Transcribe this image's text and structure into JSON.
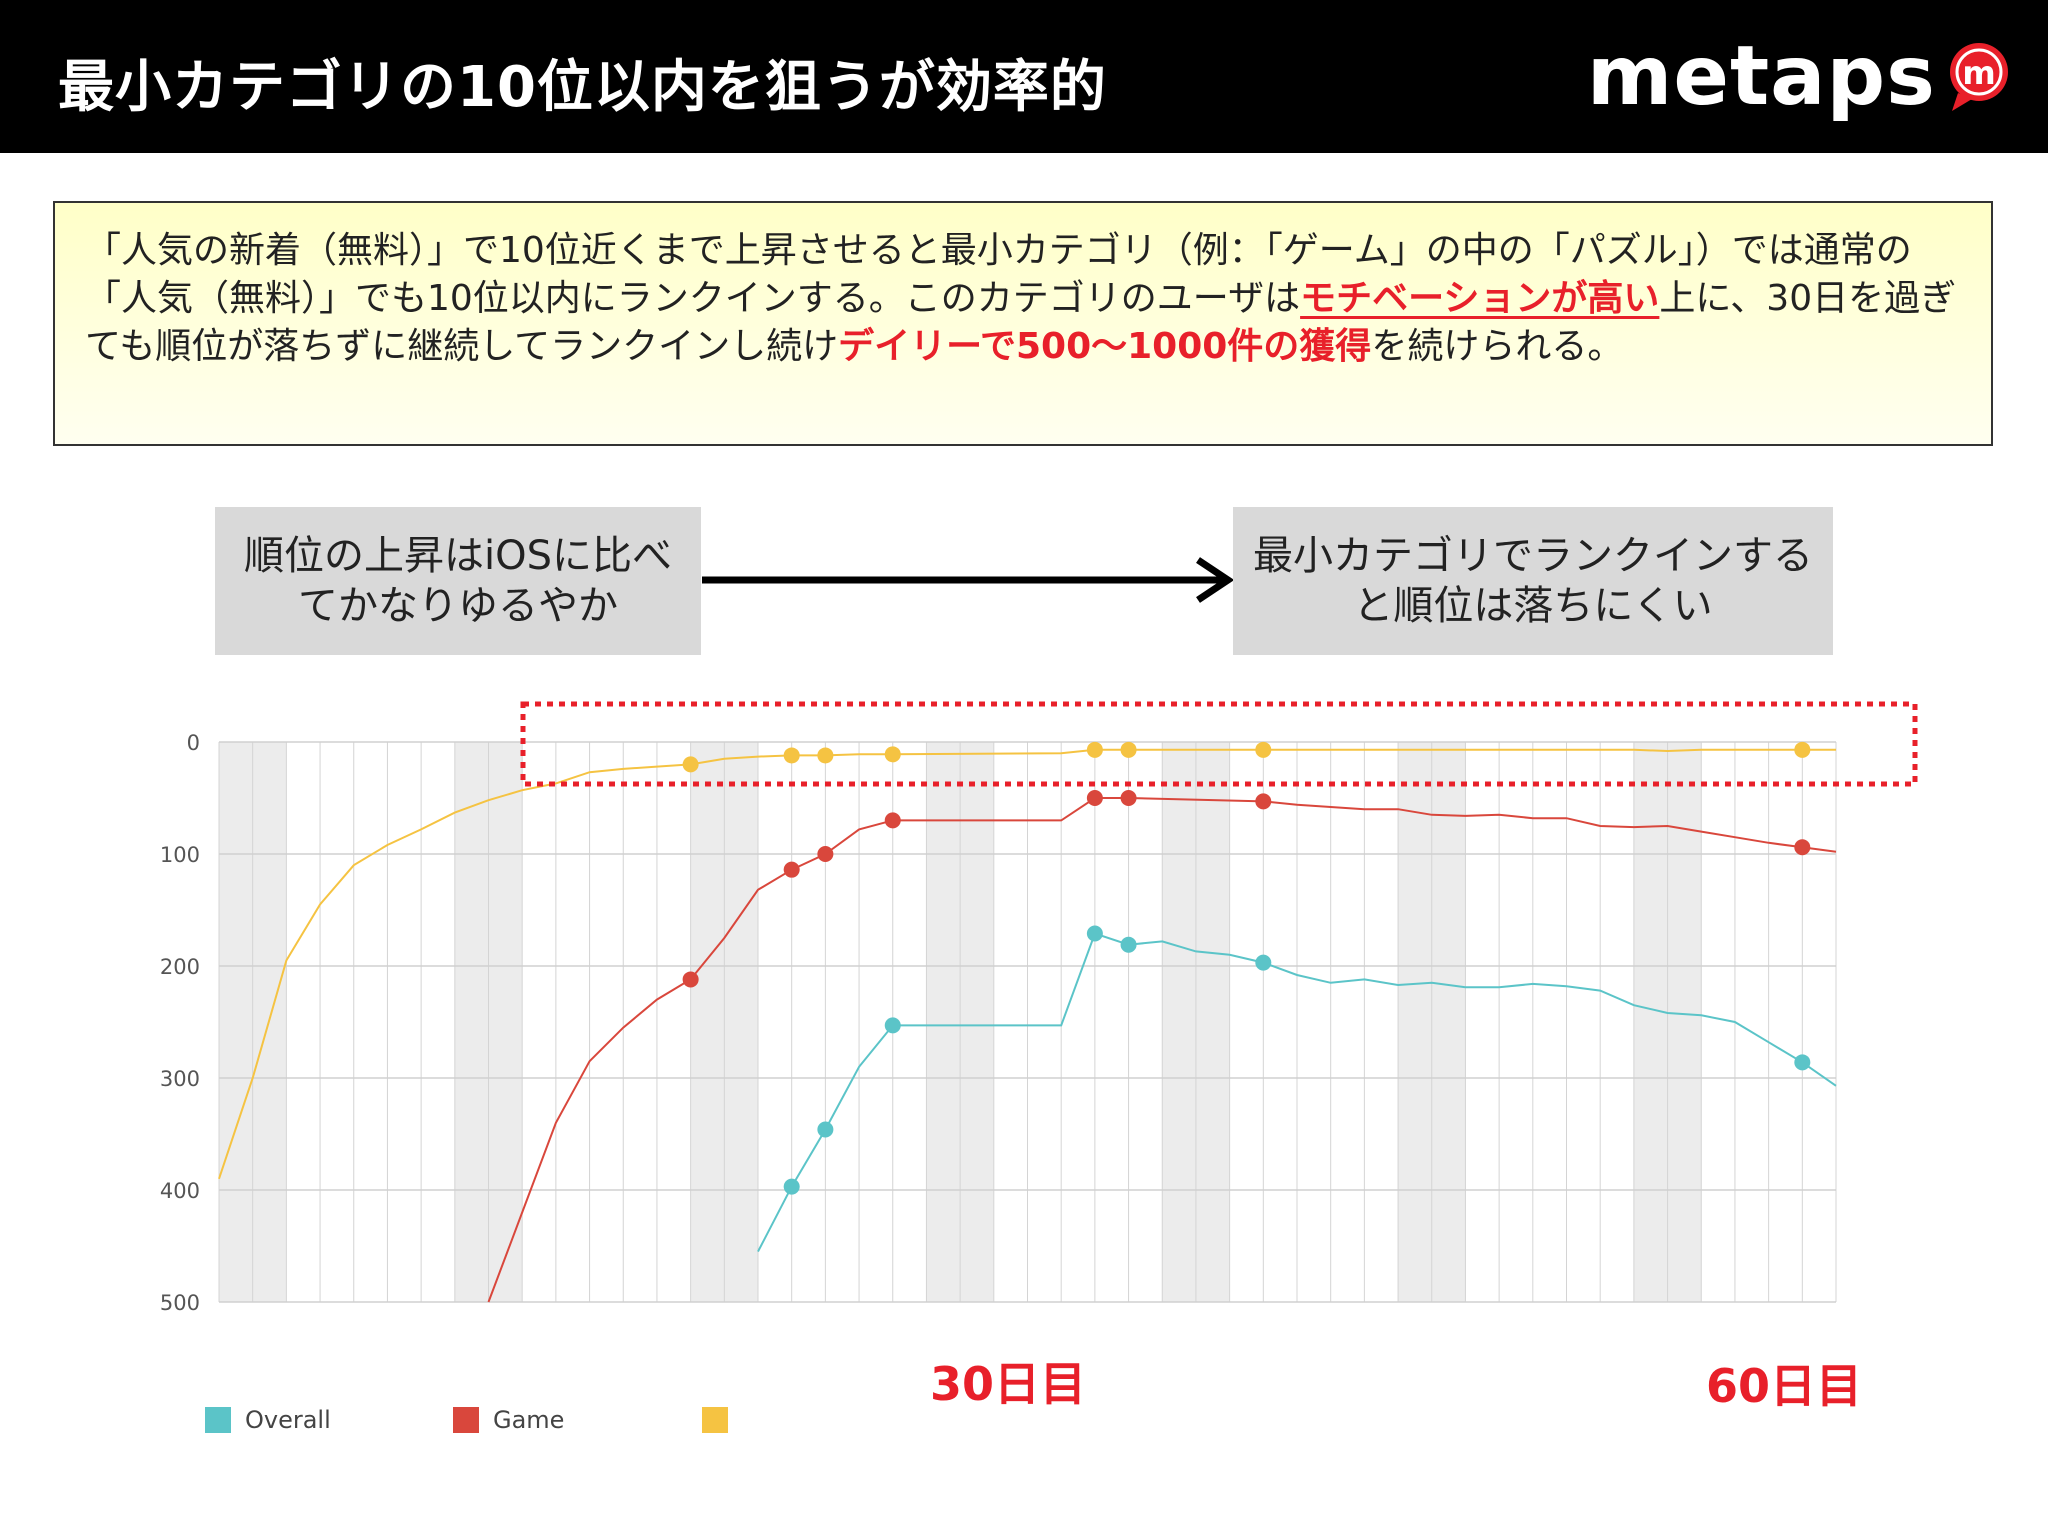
{
  "header": {
    "title": "最小カテゴリの10位以内を狙うが効率的",
    "logo_text": "metaps",
    "logo_mark_letter": "m"
  },
  "info": {
    "seg1": "「人気の新着（無料）」で10位近くまで上昇させると最小カテゴリ（例：「ゲーム」の中の「パズル」）では通常の「人気（無料）」でも10位以内にランクインする。このカテゴリのユーザは",
    "seg2_highlight": "モチベーションが高い",
    "seg3": "上に、30日を過ぎても順位が落ちずに継続してランクインし続け",
    "seg4_highlight": "デイリーで500～1000件の獲得",
    "seg5": "を続けられる。"
  },
  "callouts": {
    "left": "順位の上昇はiOSに比べてかなりゆるやか",
    "right": "最小カテゴリでランクインすると順位は落ちにくい"
  },
  "annotations": {
    "day30": "30日目",
    "day60": "60日目"
  },
  "colors": {
    "overall": "#5bc4c8",
    "game": "#d9473c",
    "subcategory": "#f5c342",
    "highlight_red": "#e8202a"
  },
  "chart_data": {
    "type": "line",
    "yaxis_inverted": true,
    "ylim": [
      0,
      500
    ],
    "yticks": [
      0,
      100,
      200,
      300,
      400,
      500
    ],
    "xlim": [
      0,
      48
    ],
    "legend_position": "bottom-left",
    "legend": [
      "Overall",
      "Game",
      ""
    ],
    "series": [
      {
        "name": "Overall",
        "color": "#5bc4c8",
        "points": [
          [
            16,
            455
          ],
          [
            17,
            397
          ],
          [
            18,
            346
          ],
          [
            19,
            290
          ],
          [
            20,
            253
          ],
          [
            25,
            253
          ],
          [
            26,
            171
          ],
          [
            27,
            181
          ],
          [
            28,
            178
          ],
          [
            29,
            187
          ],
          [
            30,
            190
          ],
          [
            31,
            197
          ],
          [
            32,
            208
          ],
          [
            33,
            215
          ],
          [
            34,
            212
          ],
          [
            35,
            217
          ],
          [
            36,
            215
          ],
          [
            37,
            219
          ],
          [
            38,
            219
          ],
          [
            39,
            216
          ],
          [
            40,
            218
          ],
          [
            41,
            222
          ],
          [
            42,
            235
          ],
          [
            43,
            242
          ],
          [
            44,
            244
          ],
          [
            45,
            250
          ],
          [
            46,
            268
          ],
          [
            47,
            286
          ],
          [
            48,
            307
          ]
        ],
        "markers": [
          [
            17,
            397
          ],
          [
            18,
            346
          ],
          [
            20,
            253
          ],
          [
            26,
            171
          ],
          [
            27,
            181
          ],
          [
            31,
            197
          ],
          [
            47,
            286
          ]
        ]
      },
      {
        "name": "Game",
        "color": "#d9473c",
        "points": [
          [
            8,
            500
          ],
          [
            9,
            420
          ],
          [
            10,
            340
          ],
          [
            11,
            285
          ],
          [
            12,
            255
          ],
          [
            13,
            230
          ],
          [
            14,
            212
          ],
          [
            15,
            175
          ],
          [
            16,
            132
          ],
          [
            17,
            114
          ],
          [
            18,
            100
          ],
          [
            19,
            78
          ],
          [
            20,
            70
          ],
          [
            25,
            70
          ],
          [
            26,
            50
          ],
          [
            27,
            50
          ],
          [
            31,
            53
          ],
          [
            32,
            56
          ],
          [
            33,
            58
          ],
          [
            34,
            60
          ],
          [
            35,
            60
          ],
          [
            36,
            65
          ],
          [
            37,
            66
          ],
          [
            38,
            65
          ],
          [
            39,
            68
          ],
          [
            40,
            68
          ],
          [
            41,
            75
          ],
          [
            42,
            76
          ],
          [
            43,
            75
          ],
          [
            44,
            80
          ],
          [
            45,
            85
          ],
          [
            46,
            90
          ],
          [
            47,
            94
          ],
          [
            48,
            98
          ]
        ],
        "markers": [
          [
            14,
            212
          ],
          [
            17,
            114
          ],
          [
            18,
            100
          ],
          [
            20,
            70
          ],
          [
            26,
            50
          ],
          [
            27,
            50
          ],
          [
            31,
            53
          ],
          [
            47,
            94
          ]
        ]
      },
      {
        "name": "",
        "color": "#f5c342",
        "points": [
          [
            0,
            390
          ],
          [
            1,
            300
          ],
          [
            2,
            195
          ],
          [
            3,
            145
          ],
          [
            4,
            110
          ],
          [
            5,
            92
          ],
          [
            6,
            78
          ],
          [
            7,
            63
          ],
          [
            8,
            52
          ],
          [
            9,
            43
          ],
          [
            10,
            37
          ],
          [
            11,
            27
          ],
          [
            12,
            24
          ],
          [
            13,
            22
          ],
          [
            14,
            20
          ],
          [
            15,
            15
          ],
          [
            16,
            13
          ],
          [
            17,
            12
          ],
          [
            18,
            12
          ],
          [
            19,
            11
          ],
          [
            20,
            11
          ],
          [
            25,
            10
          ],
          [
            26,
            7
          ],
          [
            27,
            7
          ],
          [
            31,
            7
          ],
          [
            36,
            7
          ],
          [
            42,
            7
          ],
          [
            43,
            8
          ],
          [
            44,
            7
          ],
          [
            47,
            7
          ],
          [
            48,
            7
          ]
        ],
        "markers": [
          [
            14,
            20
          ],
          [
            17,
            12
          ],
          [
            18,
            12
          ],
          [
            20,
            11
          ],
          [
            26,
            7
          ],
          [
            27,
            7
          ],
          [
            31,
            7
          ],
          [
            47,
            7
          ]
        ]
      }
    ]
  }
}
